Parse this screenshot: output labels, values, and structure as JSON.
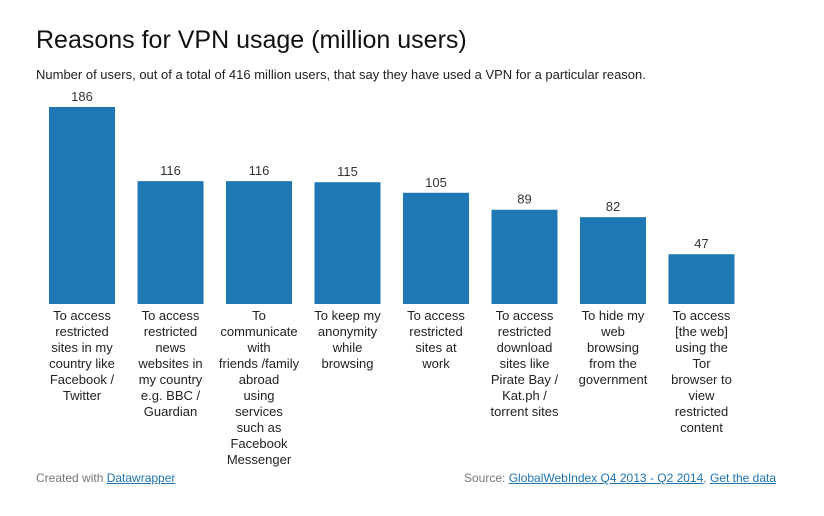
{
  "title": "Reasons for VPN usage (million users)",
  "subtitle": "Number of users, out of a total of 416 million users, that say they have used a VPN for a particular reason.",
  "colors": {
    "bar": "#1f78b4",
    "link": "#1d73b0"
  },
  "footer": {
    "credit_prefix": "Created with ",
    "credit_link": "Datawrapper",
    "source_prefix": "Source: ",
    "source_link": "GlobalWebIndex Q4 2013 - Q2 2014",
    "separator": ", ",
    "data_link": "Get the data"
  },
  "chart_data": {
    "type": "bar",
    "categories": [
      [
        "To access",
        "restricted",
        "sites in my",
        "country like",
        "Facebook /",
        "Twitter"
      ],
      [
        "To access",
        "restricted",
        "news",
        "websites in",
        "my country",
        "e.g. BBC /",
        "Guardian"
      ],
      [
        "To",
        "communicate",
        "with",
        "friends /family",
        "abroad",
        "using",
        "services",
        "such as",
        "Facebook",
        "Messenger"
      ],
      [
        "To keep my",
        "anonymity",
        "while",
        "browsing"
      ],
      [
        "To access",
        "restricted",
        "sites at",
        "work"
      ],
      [
        "To access",
        "restricted",
        "download",
        "sites like",
        "Pirate Bay /",
        "Kat.ph /",
        "torrent sites"
      ],
      [
        "To hide my",
        "web",
        "browsing",
        "from the",
        "government"
      ],
      [
        "To access",
        "[the web]",
        "using the",
        "Tor",
        "browser to",
        "view",
        "restricted",
        "content"
      ]
    ],
    "values": [
      186,
      116,
      116,
      115,
      105,
      89,
      82,
      47
    ],
    "ylim": [
      0,
      186
    ]
  }
}
